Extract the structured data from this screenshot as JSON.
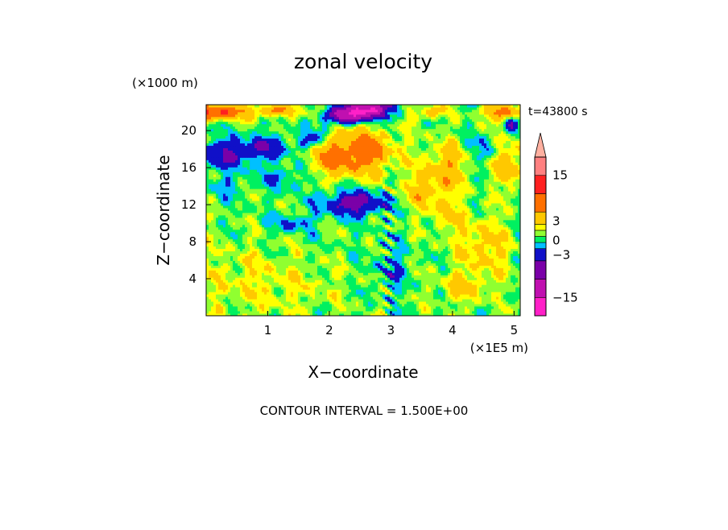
{
  "chart_data": {
    "type": "heatmap",
    "title": "zonal velocity",
    "subtitle": "t=43800 s",
    "xlabel": "X−coordinate",
    "ylabel": "Z−coordinate",
    "x_unit": "(×1E5 m)",
    "y_unit": "(×1000 m)",
    "x_ticks": [
      1,
      2,
      3,
      4,
      5
    ],
    "x_tick_labels": [
      "1",
      "2",
      "3",
      "4",
      "5"
    ],
    "y_ticks": [
      4,
      8,
      12,
      16,
      20
    ],
    "y_tick_labels": [
      "4",
      "8",
      "12",
      "16",
      "20"
    ],
    "xlim": [
      0,
      5.1
    ],
    "ylim": [
      0,
      22.8
    ],
    "contour_interval_text": "CONTOUR INTERVAL = 1.500E+00",
    "colorbar": {
      "levels": [
        -19.5,
        -15,
        -10.5,
        -6,
        -3,
        -1.5,
        0,
        1.5,
        3,
        6,
        10.5,
        15,
        19.5
      ],
      "colors": [
        "#ff20c8",
        "#c010b0",
        "#7a00a8",
        "#1010c8",
        "#00c0ff",
        "#00f060",
        "#90ff30",
        "#ffff00",
        "#ffc800",
        "#ff7000",
        "#ff2020",
        "#ff8080",
        "#ffb0a0"
      ],
      "tick_values": [
        15,
        3,
        0,
        -3,
        -15
      ],
      "tick_labels": [
        "15",
        "3",
        "0",
        "−3",
        "−15"
      ],
      "extend": "max"
    },
    "features": [
      {
        "x": 2.6,
        "z": 22.2,
        "amp": -18,
        "sx": 0.35,
        "sz": 1.0
      },
      {
        "x": 2.2,
        "z": 21.6,
        "amp": -10,
        "sx": 0.25,
        "sz": 0.8
      },
      {
        "x": 0.15,
        "z": 22.0,
        "amp": 11,
        "sx": 0.45,
        "sz": 0.8
      },
      {
        "x": 1.1,
        "z": 22.2,
        "amp": 6,
        "sx": 0.4,
        "sz": 0.7
      },
      {
        "x": 4.8,
        "z": 22.0,
        "amp": 8,
        "sx": 0.3,
        "sz": 0.8
      },
      {
        "x": 3.6,
        "z": 22.0,
        "amp": 4,
        "sx": 0.3,
        "sz": 0.8
      },
      {
        "x": 0.35,
        "z": 17.5,
        "amp": -6.5,
        "sx": 0.45,
        "sz": 1.5
      },
      {
        "x": 1.0,
        "z": 18.3,
        "amp": -5,
        "sx": 0.35,
        "sz": 1.2
      },
      {
        "x": 1.75,
        "z": 19.0,
        "amp": -4,
        "sx": 0.25,
        "sz": 1.0
      },
      {
        "x": 1.9,
        "z": 20.5,
        "amp": -4,
        "sx": 0.1,
        "sz": 0.9
      },
      {
        "x": 2.5,
        "z": 17.8,
        "amp": 8,
        "sx": 0.55,
        "sz": 2.6
      },
      {
        "x": 2.0,
        "z": 17.0,
        "amp": 4.5,
        "sx": 0.3,
        "sz": 1.8
      },
      {
        "x": 2.4,
        "z": 12.2,
        "amp": -8,
        "sx": 0.5,
        "sz": 1.3
      },
      {
        "x": 1.4,
        "z": 10.0,
        "amp": -3.5,
        "sx": 0.35,
        "sz": 0.9
      },
      {
        "x": 3.9,
        "z": 16.0,
        "amp": 5,
        "sx": 0.35,
        "sz": 2.6
      },
      {
        "x": 3.5,
        "z": 13.5,
        "amp": 4,
        "sx": 0.3,
        "sz": 2.0
      },
      {
        "x": 4.5,
        "z": 18.0,
        "amp": -2.5,
        "sx": 0.25,
        "sz": 1.5
      },
      {
        "x": 4.9,
        "z": 16.5,
        "amp": 5,
        "sx": 0.2,
        "sz": 3.0
      },
      {
        "x": 4.5,
        "z": 7.5,
        "amp": 4,
        "sx": 0.45,
        "sz": 3.0
      },
      {
        "x": 3.0,
        "z": 5.0,
        "amp": -3,
        "sx": 0.25,
        "sz": 2.5
      },
      {
        "x": 0.5,
        "z": 4.0,
        "amp": 1.8,
        "sx": 1.0,
        "sz": 4.0
      },
      {
        "x": 1.5,
        "z": 3.0,
        "amp": 1.2,
        "sx": 0.9,
        "sz": 3.0
      },
      {
        "x": 3.9,
        "z": 11.0,
        "amp": 3,
        "sx": 0.3,
        "sz": 2.0
      },
      {
        "x": 0.3,
        "z": 14.0,
        "amp": -2.5,
        "sx": 0.3,
        "sz": 1.0
      },
      {
        "x": 1.2,
        "z": 15.0,
        "amp": -3,
        "sx": 0.35,
        "sz": 1.2
      },
      {
        "x": 4.2,
        "z": 3.0,
        "amp": 3,
        "sx": 0.45,
        "sz": 1.8
      },
      {
        "x": 4.95,
        "z": 20.5,
        "amp": -5,
        "sx": 0.12,
        "sz": 1.0
      }
    ]
  }
}
